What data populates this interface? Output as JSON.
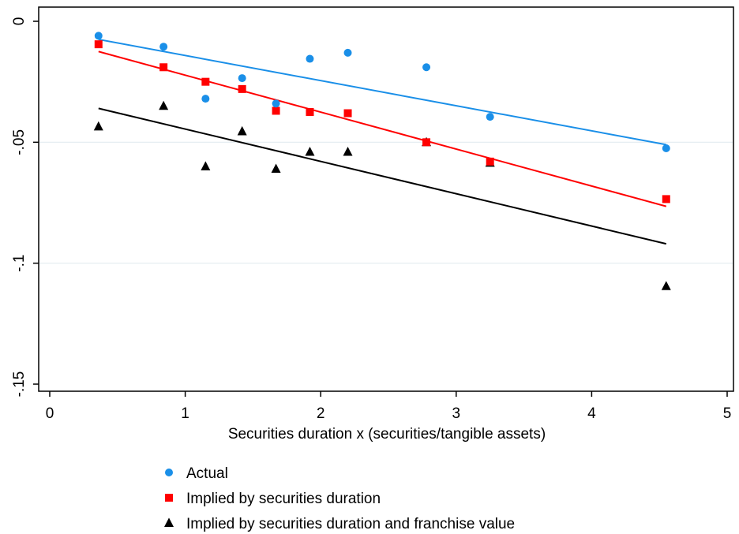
{
  "colors": {
    "background": "#ffffff",
    "gridline": "#e3ecf0",
    "axis": "#000000",
    "actual": "#1a8fe8",
    "securities": "#ff0000",
    "franchise": "#000000"
  },
  "chart_data": {
    "type": "scatter",
    "title": "",
    "xlabel": "Securities duration x (securities/tangible assets)",
    "ylabel": "",
    "xlim": [
      0,
      5
    ],
    "ylim": [
      -0.15,
      0
    ],
    "x_ticks": [
      0,
      1,
      2,
      3,
      4,
      5
    ],
    "x_tick_labels": [
      "0",
      "1",
      "2",
      "3",
      "4",
      "5"
    ],
    "y_ticks": [
      0,
      -0.05,
      -0.1,
      -0.15
    ],
    "y_tick_labels": [
      "0",
      "-.05",
      "-.1",
      "-.15"
    ],
    "grid": "horizontal",
    "legend_position": "bottom",
    "series": [
      {
        "name": "Actual",
        "marker": "circle",
        "color": "#1a8fe8",
        "x": [
          0.36,
          0.84,
          1.15,
          1.42,
          1.67,
          1.92,
          2.2,
          2.78,
          3.25,
          4.55
        ],
        "y": [
          -0.006,
          -0.0105,
          -0.032,
          -0.0235,
          -0.034,
          -0.0155,
          -0.013,
          -0.019,
          -0.0395,
          -0.0525
        ],
        "fit": {
          "x": [
            0.36,
            4.55
          ],
          "y": [
            -0.0075,
            -0.051
          ]
        }
      },
      {
        "name": "Implied by securities duration",
        "marker": "square",
        "color": "#ff0000",
        "x": [
          0.36,
          0.84,
          1.15,
          1.42,
          1.67,
          1.92,
          2.2,
          2.78,
          3.25,
          4.55
        ],
        "y": [
          -0.0095,
          -0.019,
          -0.025,
          -0.028,
          -0.037,
          -0.0375,
          -0.038,
          -0.05,
          -0.058,
          -0.0735
        ],
        "fit": {
          "x": [
            0.36,
            4.55
          ],
          "y": [
            -0.0125,
            -0.0765
          ]
        }
      },
      {
        "name": "Implied by securities duration and franchise value",
        "marker": "triangle",
        "color": "#000000",
        "x": [
          0.36,
          0.84,
          1.15,
          1.42,
          1.67,
          1.92,
          2.2,
          2.78,
          3.25,
          4.55
        ],
        "y": [
          -0.0435,
          -0.035,
          -0.06,
          -0.0455,
          -0.061,
          -0.054,
          -0.054,
          -0.05,
          -0.0585,
          -0.1095
        ],
        "fit": {
          "x": [
            0.36,
            4.55
          ],
          "y": [
            -0.036,
            -0.092
          ]
        }
      }
    ]
  }
}
